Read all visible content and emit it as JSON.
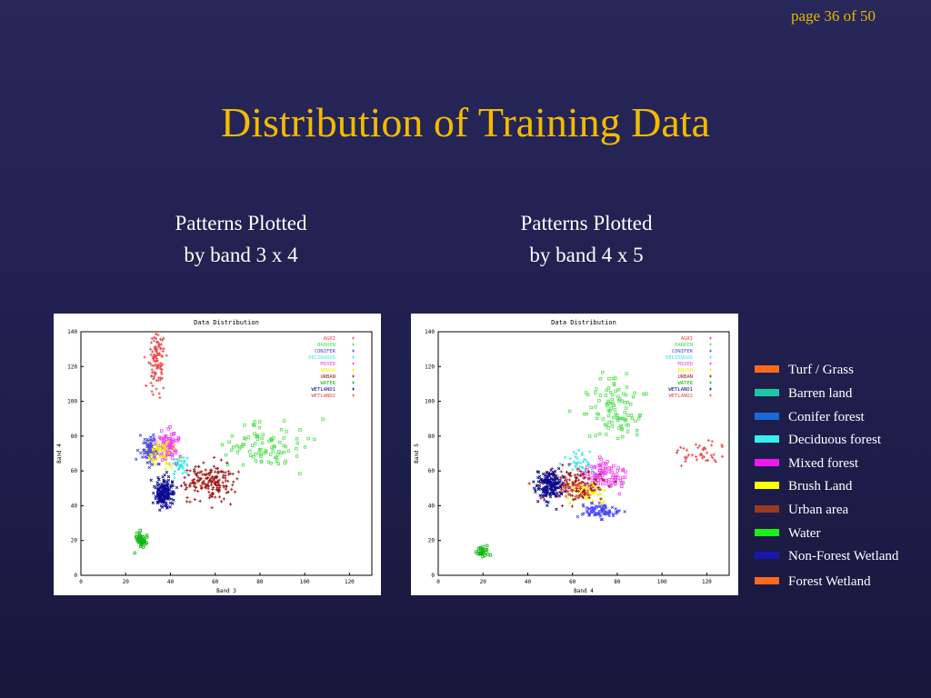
{
  "page_indicator": "page 36 of 50",
  "title": "Distribution of Training Data",
  "subtitles": {
    "left_line1": "Patterns Plotted",
    "left_line2": "by band 3 x 4",
    "right_line1": "Patterns Plotted",
    "right_line2": "by band 4 x 5"
  },
  "legend": [
    {
      "label": "Turf / Grass",
      "color": "#ff6a1a"
    },
    {
      "label": "Barren land",
      "color": "#1ac8a8"
    },
    {
      "label": "Conifer forest",
      "color": "#1a6ad8"
    },
    {
      "label": "Deciduous forest",
      "color": "#33f0f0"
    },
    {
      "label": "Mixed forest",
      "color": "#f018f0"
    },
    {
      "label": "Brush Land",
      "color": "#ffff00"
    },
    {
      "label": "Urban area",
      "color": "#9a3a1e"
    },
    {
      "label": "Water",
      "color": "#18f018"
    },
    {
      "label": "Non-Forest Wetland",
      "color": "#1818b0"
    },
    {
      "label": "Forest Wetland",
      "color": "#ff6a1a"
    }
  ],
  "chart_data": [
    {
      "type": "scatter",
      "title": "Data Distribution",
      "xlabel": "Band 3",
      "ylabel": "Band 4",
      "xlim": [
        0,
        130
      ],
      "ylim": [
        0,
        140
      ],
      "xticks": [
        0,
        20,
        40,
        60,
        80,
        100,
        120
      ],
      "yticks": [
        0,
        20,
        40,
        60,
        80,
        100,
        120,
        140
      ],
      "legend_position": "top-right",
      "series": [
        {
          "name": "AGRI",
          "color": "#e84848",
          "cluster": {
            "cx": 34,
            "cy": 118,
            "sx": 3,
            "sy": 13,
            "n": 70
          }
        },
        {
          "name": "BARREN",
          "color": "#50e050",
          "cluster": {
            "cx": 85,
            "cy": 74,
            "sx": 14,
            "sy": 9,
            "n": 90
          }
        },
        {
          "name": "CONIFER",
          "color": "#4848f0",
          "cluster": {
            "cx": 31,
            "cy": 72,
            "sx": 3,
            "sy": 6,
            "n": 90
          }
        },
        {
          "name": "DECIDUOUS",
          "color": "#30e8e8",
          "cluster": {
            "cx": 44,
            "cy": 64,
            "sx": 3,
            "sy": 5,
            "n": 40
          }
        },
        {
          "name": "MIXED",
          "color": "#f040f0",
          "cluster": {
            "cx": 39,
            "cy": 74,
            "sx": 4,
            "sy": 6,
            "n": 80
          }
        },
        {
          "name": "BRUSH",
          "color": "#f0f000",
          "cluster": {
            "cx": 36,
            "cy": 70,
            "sx": 4,
            "sy": 6,
            "n": 50
          }
        },
        {
          "name": "URBAN",
          "color": "#a01818",
          "cluster": {
            "cx": 58,
            "cy": 54,
            "sx": 8,
            "sy": 7,
            "n": 180
          }
        },
        {
          "name": "WATER",
          "color": "#10b810",
          "cluster": {
            "cx": 27,
            "cy": 20,
            "sx": 2,
            "sy": 3,
            "n": 50
          }
        },
        {
          "name": "WETLAND1",
          "color": "#0c0c90",
          "cluster": {
            "cx": 37,
            "cy": 47,
            "sx": 3,
            "sy": 6,
            "n": 160
          }
        },
        {
          "name": "WETLAND2",
          "color": "#e84848",
          "cluster": {
            "cx": 34,
            "cy": 128,
            "sx": 2,
            "sy": 8,
            "n": 30
          }
        }
      ]
    },
    {
      "type": "scatter",
      "title": "Data Distribution",
      "xlabel": "Band 4",
      "ylabel": "Band 5",
      "xlim": [
        0,
        130
      ],
      "ylim": [
        0,
        140
      ],
      "xticks": [
        0,
        20,
        40,
        60,
        80,
        100,
        120
      ],
      "yticks": [
        0,
        20,
        40,
        60,
        80,
        100,
        120,
        140
      ],
      "legend_position": "top-right",
      "series": [
        {
          "name": "AGRI",
          "color": "#e84848",
          "cluster": {
            "cx": 118,
            "cy": 70,
            "sx": 8,
            "sy": 5,
            "n": 40
          }
        },
        {
          "name": "BARREN",
          "color": "#50e050",
          "cluster": {
            "cx": 78,
            "cy": 95,
            "sx": 10,
            "sy": 15,
            "n": 100
          }
        },
        {
          "name": "CONIFER",
          "color": "#4848f0",
          "cluster": {
            "cx": 72,
            "cy": 37,
            "sx": 7,
            "sy": 3,
            "n": 80
          }
        },
        {
          "name": "DECIDUOUS",
          "color": "#30e8e8",
          "cluster": {
            "cx": 63,
            "cy": 64,
            "sx": 4,
            "sy": 4,
            "n": 40
          }
        },
        {
          "name": "MIXED",
          "color": "#f040f0",
          "cluster": {
            "cx": 74,
            "cy": 58,
            "sx": 7,
            "sy": 5,
            "n": 90
          }
        },
        {
          "name": "BRUSH",
          "color": "#f0f000",
          "cluster": {
            "cx": 66,
            "cy": 48,
            "sx": 6,
            "sy": 5,
            "n": 60
          }
        },
        {
          "name": "URBAN",
          "color": "#a01818",
          "cluster": {
            "cx": 60,
            "cy": 52,
            "sx": 10,
            "sy": 7,
            "n": 130
          }
        },
        {
          "name": "WATER",
          "color": "#10b810",
          "cluster": {
            "cx": 20,
            "cy": 14,
            "sx": 2,
            "sy": 2,
            "n": 30
          }
        },
        {
          "name": "WETLAND1",
          "color": "#0c0c90",
          "cluster": {
            "cx": 50,
            "cy": 52,
            "sx": 4,
            "sy": 6,
            "n": 160
          }
        },
        {
          "name": "WETLAND2",
          "color": "#e84848",
          "cluster": {
            "cx": 62,
            "cy": 50,
            "sx": 6,
            "sy": 5,
            "n": 40
          }
        }
      ]
    }
  ]
}
